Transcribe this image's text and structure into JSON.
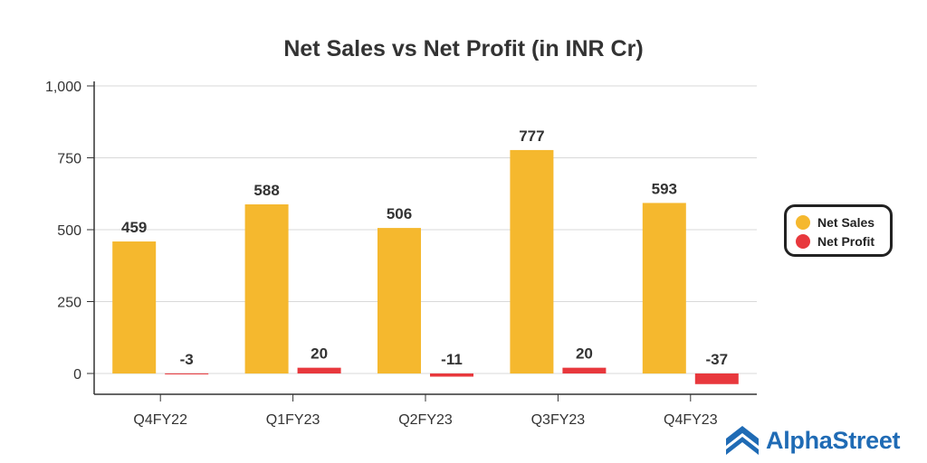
{
  "chart_data": {
    "type": "bar",
    "title": "Net Sales vs Net Profit (in INR Cr)",
    "categories": [
      "Q4FY22",
      "Q1FY23",
      "Q2FY23",
      "Q3FY23",
      "Q4FY23"
    ],
    "series": [
      {
        "name": "Net Sales",
        "color": "#f5b82e",
        "values": [
          459,
          588,
          506,
          777,
          593
        ]
      },
      {
        "name": "Net Profit",
        "color": "#e8383d",
        "values": [
          -3,
          20,
          -11,
          20,
          -37
        ]
      }
    ],
    "ylim": [
      -75,
      1000
    ],
    "yticks": [
      0,
      250,
      500,
      750,
      1000
    ],
    "ytick_labels": [
      "0",
      "250",
      "500",
      "750",
      "1,000"
    ],
    "grid": true,
    "legend": "right"
  },
  "brand": {
    "name": "AlphaStreet",
    "icon": "alphastreet-logo-icon",
    "color": "#1f6bb5"
  }
}
